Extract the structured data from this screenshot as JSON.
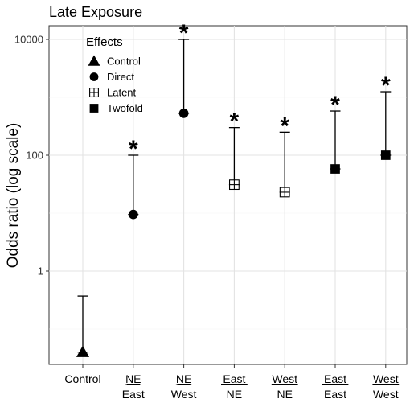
{
  "chart_data": {
    "type": "scatter",
    "title": "Late Exposure",
    "ylabel": "Odds ratio (log scale)",
    "xlabel": "",
    "yscale": "log",
    "ylim": [
      0.04,
      30000
    ],
    "yticks": [
      {
        "value": 1,
        "label": "1"
      },
      {
        "value": 100,
        "label": "100"
      },
      {
        "value": 10000,
        "label": "10000"
      }
    ],
    "grid": true,
    "legend": {
      "title": "Effects",
      "position": "top-left",
      "entries": [
        {
          "label": "Control",
          "shape": "triangle"
        },
        {
          "label": "Direct",
          "shape": "circle"
        },
        {
          "label": "Latent",
          "shape": "crossed-square"
        },
        {
          "label": "Twofold",
          "shape": "square"
        }
      ]
    },
    "significance_marker": "*",
    "points": [
      {
        "top": "Control",
        "bottom": "",
        "effect": "Control",
        "shape": "triangle",
        "value": 0.04,
        "upper": 0.37,
        "significant": false
      },
      {
        "top": "NE",
        "bottom": "East",
        "effect": "Direct",
        "shape": "circle",
        "value": 9.5,
        "upper": 100,
        "significant": true
      },
      {
        "top": "NE",
        "bottom": "West",
        "effect": "Direct",
        "shape": "circle",
        "value": 530,
        "upper": 10000,
        "significant": true
      },
      {
        "top": "East",
        "bottom": "NE",
        "effect": "Latent",
        "shape": "crossed-square",
        "value": 31,
        "upper": 300,
        "significant": true
      },
      {
        "top": "West",
        "bottom": "NE",
        "effect": "Latent",
        "shape": "crossed-square",
        "value": 23,
        "upper": 250,
        "significant": true
      },
      {
        "top": "East",
        "bottom": "East",
        "effect": "Twofold",
        "shape": "square",
        "value": 58,
        "upper": 580,
        "significant": true
      },
      {
        "top": "West",
        "bottom": "West",
        "effect": "Twofold",
        "shape": "square",
        "value": 100,
        "upper": 1250,
        "significant": true
      }
    ]
  }
}
